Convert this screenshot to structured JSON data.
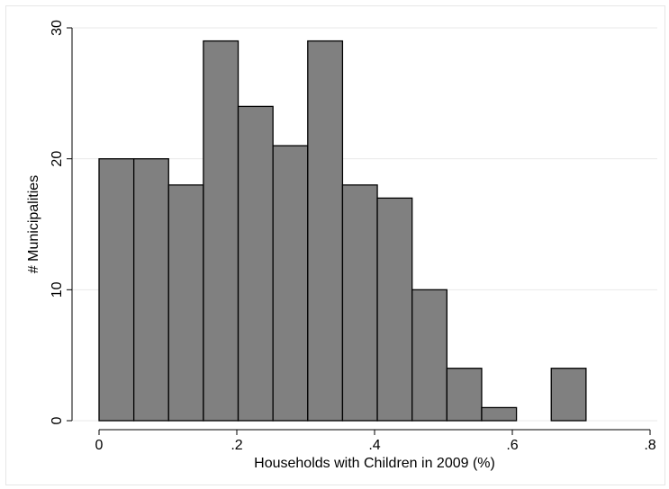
{
  "chart_data": {
    "type": "bar",
    "subtype": "histogram",
    "title": "",
    "xlabel": "Households with Children in 2009 (%)",
    "ylabel": "# Municipalities",
    "xlim": [
      0,
      0.8
    ],
    "ylim": [
      0,
      30
    ],
    "bin_edges": [
      0,
      0.0505,
      0.101,
      0.1515,
      0.202,
      0.2525,
      0.303,
      0.3535,
      0.404,
      0.4545,
      0.505,
      0.5555,
      0.606,
      0.6565,
      0.707
    ],
    "values": [
      20,
      20,
      18,
      29,
      24,
      21,
      29,
      18,
      17,
      10,
      4,
      1,
      0,
      4
    ],
    "x_ticks": [
      0,
      0.2,
      0.4,
      0.6,
      0.8
    ],
    "x_tick_labels": [
      "0",
      ".2",
      ".4",
      ".6",
      ".8"
    ],
    "y_ticks": [
      0,
      10,
      20,
      30
    ],
    "y_tick_labels": [
      "0",
      "10",
      "20",
      "30"
    ],
    "grid": "horizontal",
    "bar_color": "#808080",
    "bar_edge_color": "#000000",
    "grid_color": "#eaeaea"
  }
}
